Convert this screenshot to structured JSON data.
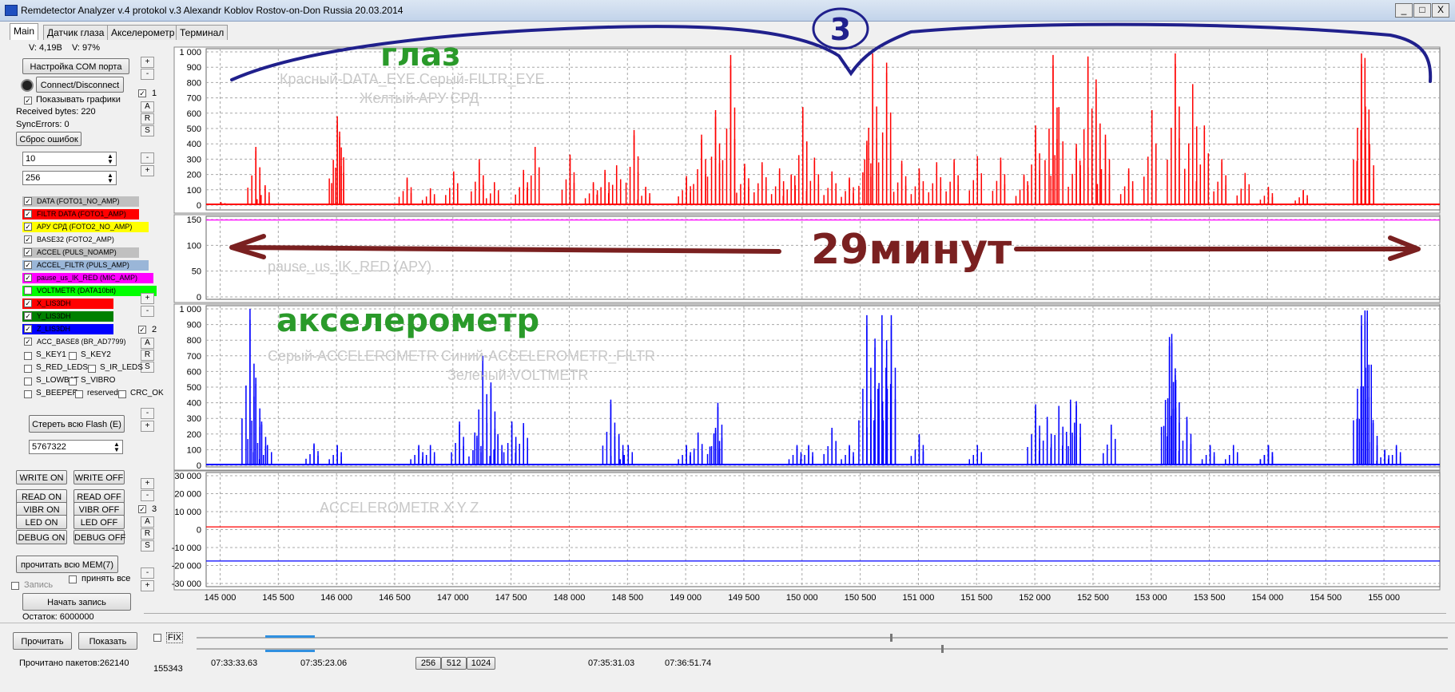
{
  "window": {
    "title": "Remdetector Analyzer v.4 protokol v.3 Alexandr Koblov Rostov-on-Don Russia 20.03.2014",
    "min": "_",
    "max": "□",
    "close": "X"
  },
  "tabs": [
    {
      "label": "Main",
      "active": true
    },
    {
      "label": "Датчик глаза"
    },
    {
      "label": "Акселерометр"
    },
    {
      "label": "Терминал"
    }
  ],
  "status": {
    "voltage": "V: 4,19В",
    "battery": "V: 97%",
    "received": "Received bytes: 220",
    "sync": "SyncErrors: 0",
    "remaining": "Остаток: 6000000",
    "packets": "Прочитано пакетов:262140",
    "count": "155343"
  },
  "controls": {
    "com_port": "Настройка COM порта",
    "connect": "Connect/Disconnect",
    "show_graphs": "Показывать графики",
    "reset_errors": "Сброс ошибок",
    "field1": "10",
    "field2": "256",
    "erase_flash": "Стереть всю Flash (E)",
    "flash_value": "5767322",
    "write_on": "WRITE ON",
    "write_off": "WRITE OFF",
    "read_on": "READ ON",
    "read_off": "READ OFF",
    "vibr_on": "VIBR ON",
    "vibr_off": "VIBR OFF",
    "led_on": "LED ON",
    "led_off": "LED OFF",
    "debug_on": "DEBUG ON",
    "debug_off": "DEBUG OFF",
    "read_mem": "прочитать всю MEM(7)",
    "record": "Запись",
    "accept_all": "принять все",
    "start_record": "Начать запись",
    "read": "Прочитать",
    "show": "Показать",
    "fix": "FIX",
    "plus": "+",
    "minus": "-",
    "a": "A",
    "r": "R",
    "s": "S",
    "g1": "1",
    "g2": "2",
    "g3": "3"
  },
  "series_list": [
    {
      "label": "DATA (FOTO1_NO_AMP)",
      "color": "#c0c0c0",
      "checked": true
    },
    {
      "label": "FILTR DATA (FOTO1_AMP)",
      "color": "#ff0000",
      "checked": true
    },
    {
      "label": "АРУ СРД (FOTO2_NO_AMP)",
      "color": "#ffff00",
      "checked": true
    },
    {
      "label": "BASE32 (FOTO2_AMP)",
      "color": "#f0f0f0",
      "checked": true
    },
    {
      "label": "ACCEL (PULS_NOAMP)",
      "color": "#c0c0c0",
      "checked": true
    },
    {
      "label": "ACCEL_FILTR (PULS_AMP)",
      "color": "#9ab6d8",
      "checked": true
    },
    {
      "label": "pause_us_IK_RED (MIC_AMP)",
      "color": "#ff00ff",
      "checked": true
    },
    {
      "label": "VOLTMETR (DATA10bit)",
      "color": "#00ff00",
      "checked": false
    },
    {
      "label": "X_LIS3DH",
      "color": "#ff0000",
      "checked": true
    },
    {
      "label": "Y_LIS3DH",
      "color": "#008000",
      "checked": true
    },
    {
      "label": "Z_LIS3DH",
      "color": "#0000ff",
      "checked": true
    },
    {
      "label": "ACC_BASE8 (BR_AD7799)",
      "color": "#f0f0f0",
      "checked": true
    }
  ],
  "flags": [
    "S_KEY1",
    "S_KEY2",
    "S_RED_LEDS",
    "S_IR_LEDS",
    "S_LOWBAT",
    "S_VIBRO",
    "S_BEEPER",
    "reserved",
    "CRC_OK"
  ],
  "bottom": {
    "times": [
      "07:33:33.63",
      "07:35:23.06",
      "07:35:31.03",
      "07:36:51.74"
    ],
    "sizes": [
      "256",
      "512",
      "1024"
    ]
  },
  "chart_data": [
    {
      "type": "line",
      "ylim": [
        0,
        1000
      ],
      "yticks": [
        "1 000",
        "900",
        "800",
        "700",
        "600",
        "500",
        "400",
        "300",
        "200",
        "100",
        "0"
      ],
      "legend_text": [
        "Красный-DATA_EYE   Серый-FILTR_EYE",
        "Желтый-АРУ СРД"
      ],
      "series": [
        {
          "name": "FILTR DATA (FOTO1_AMP)",
          "color": "#ff0000",
          "bursts": [
            [
              145000,
              20
            ],
            [
              145300,
              380
            ],
            [
              145380,
              130
            ],
            [
              146000,
              580
            ],
            [
              146020,
              480
            ],
            [
              146600,
              180
            ],
            [
              146800,
              110
            ],
            [
              147000,
              220
            ],
            [
              147220,
              300
            ],
            [
              147350,
              150
            ],
            [
              147600,
              230
            ],
            [
              147700,
              380
            ],
            [
              148000,
              330
            ],
            [
              148200,
              150
            ],
            [
              148300,
              230
            ],
            [
              148400,
              260
            ],
            [
              148550,
              490
            ],
            [
              148650,
              120
            ],
            [
              149000,
              190
            ],
            [
              149130,
              460
            ],
            [
              149250,
              620
            ],
            [
              149380,
              980
            ],
            [
              149500,
              270
            ],
            [
              149650,
              280
            ],
            [
              149800,
              240
            ],
            [
              149900,
              200
            ],
            [
              150000,
              640
            ],
            [
              150100,
              310
            ],
            [
              150250,
              220
            ],
            [
              150400,
              180
            ],
            [
              150550,
              420
            ],
            [
              150600,
              990
            ],
            [
              150720,
              930
            ],
            [
              150850,
              290
            ],
            [
              151000,
              240
            ],
            [
              151150,
              280
            ],
            [
              151300,
              300
            ],
            [
              151500,
              320
            ],
            [
              151700,
              310
            ],
            [
              151900,
              200
            ],
            [
              152000,
              520
            ],
            [
              152150,
              980
            ],
            [
              152200,
              640
            ],
            [
              152350,
              400
            ],
            [
              152450,
              970
            ],
            [
              152520,
              820
            ],
            [
              152600,
              460
            ],
            [
              152800,
              240
            ],
            [
              153000,
              620
            ],
            [
              153200,
              990
            ],
            [
              153350,
              790
            ],
            [
              153450,
              520
            ],
            [
              153600,
              300
            ],
            [
              153800,
              210
            ],
            [
              154000,
              120
            ],
            [
              154300,
              100
            ],
            [
              154800,
              990
            ],
            [
              154830,
              960
            ],
            [
              154870,
              400
            ]
          ]
        }
      ]
    },
    {
      "type": "line",
      "ylim": [
        0,
        150
      ],
      "yticks": [
        "150",
        "100",
        "50",
        "0"
      ],
      "legend_text": [
        "pause_us_IK_RED (АРУ)"
      ],
      "series": [
        {
          "name": "pause_us_IK_RED (MIC_AMP)",
          "color": "#ff00ff",
          "values": [
            149
          ]
        }
      ]
    },
    {
      "type": "line",
      "ylim": [
        0,
        1000
      ],
      "yticks": [
        "1 000",
        "900",
        "800",
        "700",
        "600",
        "500",
        "400",
        "300",
        "200",
        "100",
        "0"
      ],
      "legend_text": [
        "Серый-ACCELEROMETR     Синий-ACCELEROMETR_FILTR",
        "Зеленый-VOLTMETR"
      ],
      "series": [
        {
          "name": "ACCEL_FILTR (PULS_AMP)",
          "color": "#0000ff",
          "bursts": [
            [
              145250,
              1000
            ],
            [
              145300,
              560
            ],
            [
              145350,
              280
            ],
            [
              145400,
              130
            ],
            [
              145800,
              140
            ],
            [
              146000,
              130
            ],
            [
              146700,
              130
            ],
            [
              146800,
              130
            ],
            [
              147050,
              280
            ],
            [
              147200,
              190
            ],
            [
              147250,
              700
            ],
            [
              147320,
              530
            ],
            [
              147380,
              200
            ],
            [
              147500,
              280
            ],
            [
              147600,
              270
            ],
            [
              148350,
              420
            ],
            [
              148420,
              200
            ],
            [
              148500,
              130
            ],
            [
              149000,
              130
            ],
            [
              149100,
              210
            ],
            [
              149250,
              240
            ],
            [
              149270,
              400
            ],
            [
              149950,
              130
            ],
            [
              150050,
              130
            ],
            [
              150250,
              240
            ],
            [
              150400,
              130
            ],
            [
              150550,
              960
            ],
            [
              150620,
              810
            ],
            [
              150680,
              960
            ],
            [
              150720,
              800
            ],
            [
              150760,
              960
            ],
            [
              151000,
              200
            ],
            [
              151500,
              130
            ],
            [
              152000,
              390
            ],
            [
              152100,
              310
            ],
            [
              152200,
              380
            ],
            [
              152300,
              420
            ],
            [
              152350,
              410
            ],
            [
              152650,
              260
            ],
            [
              153150,
              820
            ],
            [
              153170,
              840
            ],
            [
              153200,
              620
            ],
            [
              153300,
              310
            ],
            [
              153500,
              130
            ],
            [
              153700,
              130
            ],
            [
              154000,
              130
            ],
            [
              154000,
              130
            ],
            [
              154800,
              960
            ],
            [
              154830,
              990
            ],
            [
              154850,
              990
            ],
            [
              154900,
              290
            ],
            [
              155000,
              100
            ],
            [
              155100,
              130
            ]
          ]
        }
      ]
    },
    {
      "type": "line",
      "ylim": [
        -30000,
        30000
      ],
      "yticks": [
        "30 000",
        "20 000",
        "10 000",
        "0",
        "-10 000",
        "-20 000",
        "-30 000"
      ],
      "legend_text": [
        "ACCELEROMETR X Y Z"
      ],
      "series": [
        {
          "name": "X_LIS3DH",
          "color": "#ff0000",
          "values": [
            1500
          ]
        },
        {
          "name": "Z_LIS3DH",
          "color": "#0000ff",
          "values": [
            -17500
          ]
        }
      ]
    }
  ],
  "x_axis": {
    "ticks": [
      "145 000",
      "145 500",
      "146 000",
      "146 500",
      "147 000",
      "147 500",
      "148 000",
      "148 500",
      "149 000",
      "149 500",
      "150 000",
      "150 500",
      "151 000",
      "151 500",
      "152 000",
      "152 500",
      "153 000",
      "153 500",
      "154 000",
      "154 500",
      "155 000"
    ],
    "xlim": [
      144880,
      155480
    ]
  },
  "annotations": {
    "circle_number": "3",
    "eye": "глаз",
    "minutes": "29минут",
    "accel": "акселерометр"
  }
}
